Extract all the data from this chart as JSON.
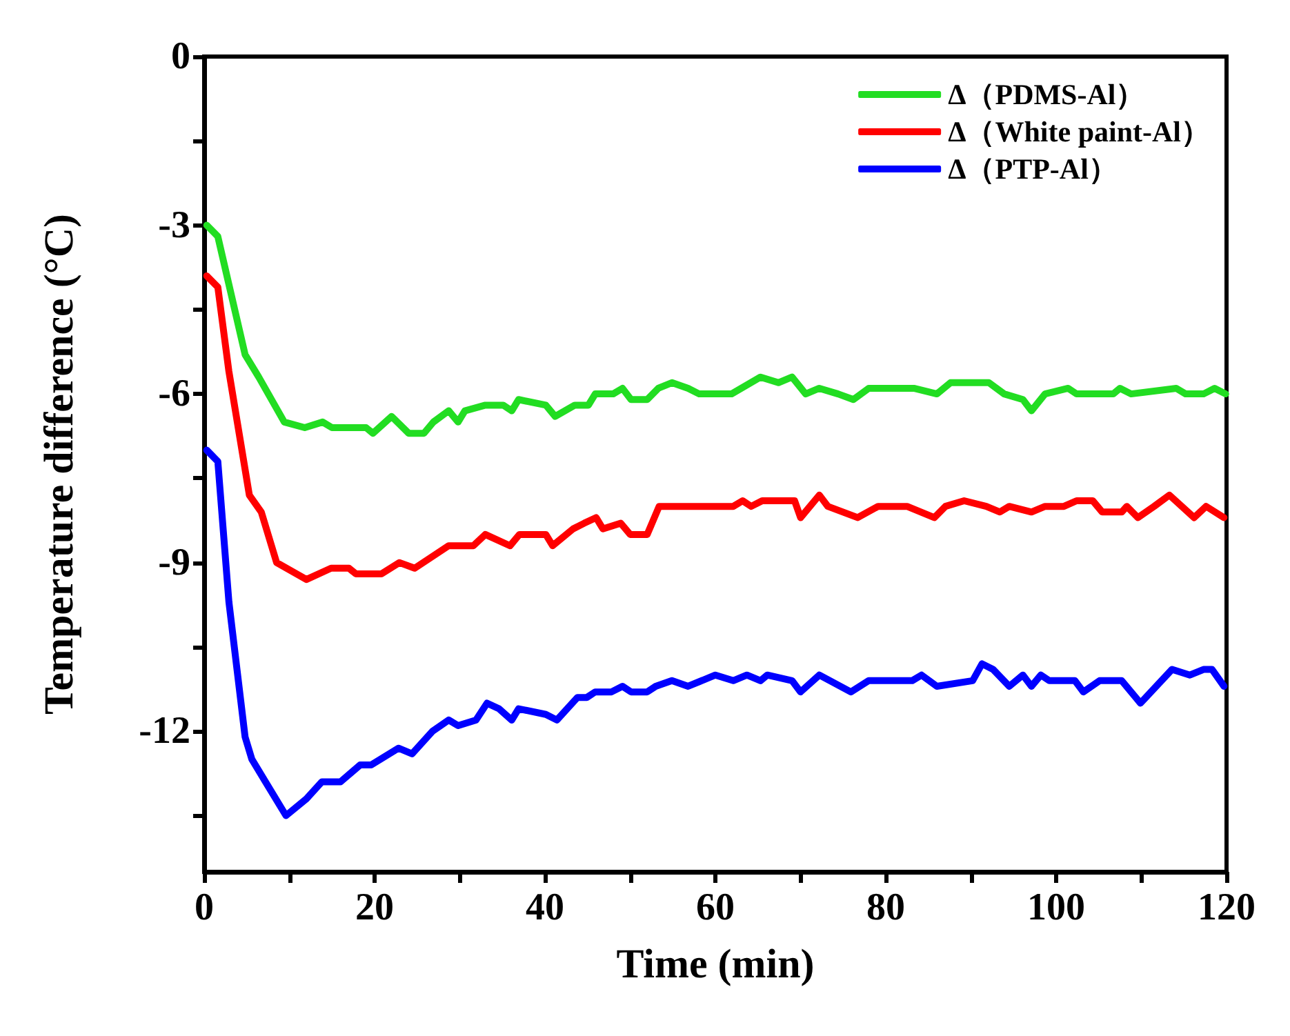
{
  "chart_data": {
    "type": "line",
    "xlabel": "Time (min)",
    "ylabel": "Temperature difference (°C)",
    "xlim": [
      0,
      120
    ],
    "xticks": [
      0,
      {
        "value": 10,
        "label": null
      },
      20,
      {
        "value": 30,
        "label": null
      },
      40,
      {
        "value": 50,
        "label": null
      },
      60,
      {
        "value": 70,
        "label": null
      },
      80,
      {
        "value": 90,
        "label": null
      },
      100,
      {
        "value": 110,
        "label": null
      },
      120
    ],
    "ylim": [
      -14.5,
      0
    ],
    "yticks": [
      0,
      {
        "value": -1.5,
        "label": null
      },
      -3,
      {
        "value": -4.5,
        "label": null
      },
      -6,
      {
        "value": -7.5,
        "label": null
      },
      -9,
      {
        "value": -10.5,
        "label": null
      },
      -12,
      {
        "value": -13.5,
        "label": null
      }
    ],
    "legend": "top right",
    "grid": false,
    "marker": "none",
    "line_style": "solid",
    "series": [
      {
        "name": "Δ（PDMS-Al）",
        "color": "#22dd22",
        "x": [
          0.3,
          1.6,
          4.8,
          6.4,
          9.4,
          11.8,
          13.9,
          15,
          19,
          19.8,
          22,
          24,
          25.8,
          26.9,
          28.7,
          29.8,
          30.6,
          33,
          35.1,
          36.1,
          36.9,
          40.1,
          41.2,
          43.5,
          45.1,
          45.9,
          48,
          49.1,
          50.1,
          52,
          53.3,
          54.9,
          56.8,
          58.1,
          61.9,
          65.3,
          67.4,
          69,
          70.6,
          72.2,
          74.4,
          76.2,
          78,
          83.3,
          86,
          87.6,
          92.1,
          93.9,
          96.1,
          97.1,
          98.7,
          101.4,
          102.4,
          106.7,
          107.5,
          108.8,
          114.1,
          115.2,
          117.3,
          118.6,
          119.9
        ],
        "values": [
          -3.0,
          -3.2,
          -5.3,
          -5.7,
          -6.5,
          -6.6,
          -6.5,
          -6.6,
          -6.6,
          -6.7,
          -6.4,
          -6.7,
          -6.7,
          -6.5,
          -6.3,
          -6.5,
          -6.3,
          -6.2,
          -6.2,
          -6.3,
          -6.1,
          -6.2,
          -6.4,
          -6.2,
          -6.2,
          -6.0,
          -6.0,
          -5.9,
          -6.1,
          -6.1,
          -5.9,
          -5.8,
          -5.9,
          -6.0,
          -6.0,
          -5.7,
          -5.8,
          -5.7,
          -6.0,
          -5.9,
          -6.0,
          -6.1,
          -5.9,
          -5.9,
          -6.0,
          -5.8,
          -5.8,
          -6.0,
          -6.1,
          -6.3,
          -6.0,
          -5.9,
          -6.0,
          -6.0,
          -5.9,
          -6.0,
          -5.9,
          -6.0,
          -6.0,
          -5.9,
          -6.0
        ]
      },
      {
        "name": "Δ（White paint-Al）",
        "color": "#ff0000",
        "x": [
          0.3,
          1.6,
          2.9,
          5.3,
          6.7,
          8.5,
          12,
          14.9,
          17,
          17.8,
          20.8,
          22.9,
          24.7,
          28.7,
          31.6,
          33,
          35.9,
          37,
          40.1,
          40.9,
          43.3,
          44.6,
          46,
          46.8,
          48.9,
          50,
          52,
          53.4,
          62.1,
          63.2,
          64.2,
          65.5,
          69.3,
          70,
          72.2,
          73.2,
          76.7,
          79.1,
          82.5,
          85.7,
          87,
          89.2,
          91.8,
          93.4,
          94.5,
          97.1,
          98.7,
          100.9,
          102.4,
          104.3,
          105.4,
          107.7,
          108.3,
          109.6,
          111.5,
          113.3,
          116.2,
          117.6,
          119.7
        ],
        "values": [
          -3.9,
          -4.1,
          -5.6,
          -7.8,
          -8.1,
          -9.0,
          -9.3,
          -9.1,
          -9.1,
          -9.2,
          -9.2,
          -9.0,
          -9.1,
          -8.7,
          -8.7,
          -8.5,
          -8.7,
          -8.5,
          -8.5,
          -8.7,
          -8.4,
          -8.3,
          -8.2,
          -8.4,
          -8.3,
          -8.5,
          -8.5,
          -8.0,
          -8.0,
          -7.9,
          -8.0,
          -7.9,
          -7.9,
          -8.2,
          -7.8,
          -8.0,
          -8.2,
          -8.0,
          -8.0,
          -8.2,
          -8.0,
          -7.9,
          -8.0,
          -8.1,
          -8.0,
          -8.1,
          -8.0,
          -8.0,
          -7.9,
          -7.9,
          -8.1,
          -8.1,
          -8.0,
          -8.2,
          -8.0,
          -7.8,
          -8.2,
          -8.0,
          -8.2
        ]
      },
      {
        "name": "Δ（PTP-Al）",
        "color": "#0000ff",
        "x": [
          0.3,
          1.6,
          2.9,
          4.8,
          5.6,
          7.2,
          9.6,
          12,
          13.8,
          16,
          18.3,
          19.6,
          22.8,
          24.4,
          26.8,
          28.7,
          29.8,
          31.9,
          33.2,
          34.6,
          36.1,
          36.9,
          40.1,
          41.4,
          43.8,
          44.9,
          45.9,
          47.8,
          49.1,
          50.1,
          52,
          53,
          54.9,
          56.8,
          60,
          62.1,
          63.7,
          65.3,
          66.1,
          69,
          70,
          72.2,
          75.9,
          78,
          83.1,
          84.2,
          86,
          90.2,
          91.3,
          92.6,
          94.5,
          96.1,
          97.1,
          98.2,
          99.2,
          102.2,
          103.2,
          105.1,
          107.7,
          109.9,
          113.6,
          115.7,
          117.3,
          118.3,
          119.7
        ],
        "values": [
          -7.0,
          -7.2,
          -9.7,
          -12.1,
          -12.5,
          -12.9,
          -13.5,
          -13.2,
          -12.9,
          -12.9,
          -12.6,
          -12.6,
          -12.3,
          -12.4,
          -12.0,
          -11.8,
          -11.9,
          -11.8,
          -11.5,
          -11.6,
          -11.8,
          -11.6,
          -11.7,
          -11.8,
          -11.4,
          -11.4,
          -11.3,
          -11.3,
          -11.2,
          -11.3,
          -11.3,
          -11.2,
          -11.1,
          -11.2,
          -11.0,
          -11.1,
          -11.0,
          -11.1,
          -11.0,
          -11.1,
          -11.3,
          -11.0,
          -11.3,
          -11.1,
          -11.1,
          -11.0,
          -11.2,
          -11.1,
          -10.8,
          -10.9,
          -11.2,
          -11.0,
          -11.2,
          -11.0,
          -11.1,
          -11.1,
          -11.3,
          -11.1,
          -11.1,
          -11.5,
          -10.9,
          -11.0,
          -10.9,
          -10.9,
          -11.2
        ]
      }
    ]
  }
}
